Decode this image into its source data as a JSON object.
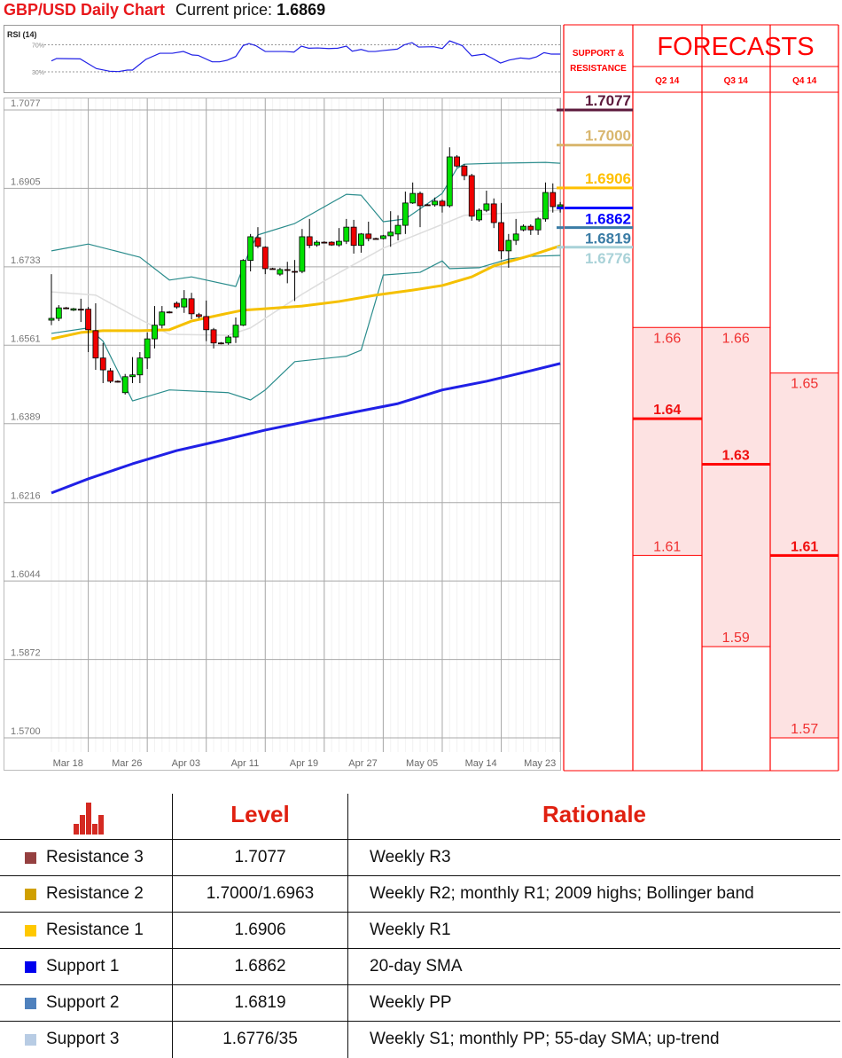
{
  "header": {
    "title": "GBP/USD Daily Chart",
    "price_label": "Current price:",
    "price_value": "1.6869"
  },
  "colors": {
    "bull": "#00e000",
    "bear": "#f00000",
    "bollinger": "#2a8c8c",
    "sma20": "#dddddd",
    "sma55": "#f5c000",
    "sma200": "#2020e6",
    "rsi": "#2020e6",
    "forecast_fill": "#fde2e2",
    "forecast_line": "#ff0000"
  },
  "chart_data": {
    "type": "candlestick",
    "y_ticks": [
      "1.7077",
      "1.6905",
      "1.6733",
      "1.6561",
      "1.6389",
      "1.6216",
      "1.6044",
      "1.5872",
      "1.5700"
    ],
    "ylim": [
      1.57,
      1.7077
    ],
    "x_ticks": [
      {
        "label": "Mar 18",
        "index": 2.25
      },
      {
        "label": "Mar 26",
        "index": 10.25
      },
      {
        "label": "Apr 03",
        "index": 18.25
      },
      {
        "label": "Apr 11",
        "index": 26.25
      },
      {
        "label": "Apr 19",
        "index": 34.25
      },
      {
        "label": "Apr 27",
        "index": 42.25
      },
      {
        "label": "May 05",
        "index": 50.25
      },
      {
        "label": "May 14",
        "index": 58.25
      },
      {
        "label": "May 23",
        "index": 66.25
      }
    ],
    "grid": true,
    "candles_ohlc": [
      [
        1.6616,
        1.6717,
        1.6605,
        1.662
      ],
      [
        1.662,
        1.6649,
        1.6614,
        1.6643
      ],
      [
        1.6643,
        1.6645,
        1.664,
        1.6642
      ],
      [
        1.6638,
        1.6643,
        1.6636,
        1.6641
      ],
      [
        1.664,
        1.6663,
        1.6612,
        1.6639
      ],
      [
        1.664,
        1.6645,
        1.6546,
        1.6595
      ],
      [
        1.6593,
        1.6653,
        1.6507,
        1.6533
      ],
      [
        1.6533,
        1.6566,
        1.6478,
        1.6507
      ],
      [
        1.6505,
        1.6511,
        1.6478,
        1.6482
      ],
      [
        1.6482,
        1.6484,
        1.6479,
        1.6481
      ],
      [
        1.6457,
        1.6498,
        1.6453,
        1.6492
      ],
      [
        1.6492,
        1.6535,
        1.6478,
        1.6496
      ],
      [
        1.6496,
        1.6546,
        1.6478,
        1.6533
      ],
      [
        1.6533,
        1.6589,
        1.6509,
        1.6575
      ],
      [
        1.6575,
        1.6647,
        1.6554,
        1.6605
      ],
      [
        1.6605,
        1.6647,
        1.6598,
        1.6634
      ],
      [
        1.6634,
        1.6636,
        1.6631,
        1.6633
      ],
      [
        1.6653,
        1.6657,
        1.6641,
        1.6645
      ],
      [
        1.6645,
        1.6682,
        1.6632,
        1.6663
      ],
      [
        1.6663,
        1.6676,
        1.6618,
        1.663
      ],
      [
        1.6628,
        1.6632,
        1.662,
        1.6624
      ],
      [
        1.6624,
        1.6659,
        1.657,
        1.6595
      ],
      [
        1.6595,
        1.6599,
        1.6554,
        1.6566
      ],
      [
        1.6566,
        1.6568,
        1.6563,
        1.6565
      ],
      [
        1.6566,
        1.6583,
        1.6562,
        1.6579
      ],
      [
        1.6579,
        1.6622,
        1.6566,
        1.6605
      ],
      [
        1.6605,
        1.675,
        1.6603,
        1.6747
      ],
      [
        1.6747,
        1.6805,
        1.6723,
        1.6799
      ],
      [
        1.6797,
        1.682,
        1.6774,
        1.6778
      ],
      [
        1.6776,
        1.6778,
        1.6717,
        1.6729
      ],
      [
        1.6729,
        1.6731,
        1.6727,
        1.6728
      ],
      [
        1.6717,
        1.6731,
        1.6713,
        1.6727
      ],
      [
        1.6727,
        1.6744,
        1.6697,
        1.6726
      ],
      [
        1.6723,
        1.6748,
        1.6658,
        1.6722
      ],
      [
        1.6723,
        1.6816,
        1.6719,
        1.6799
      ],
      [
        1.6799,
        1.6838,
        1.6774,
        1.678
      ],
      [
        1.6781,
        1.6791,
        1.6777,
        1.6787
      ],
      [
        1.6787,
        1.6789,
        1.6785,
        1.6786
      ],
      [
        1.6787,
        1.6789,
        1.6779,
        1.6781
      ],
      [
        1.6781,
        1.6818,
        1.6777,
        1.6789
      ],
      [
        1.6789,
        1.6838,
        1.6783,
        1.682
      ],
      [
        1.682,
        1.6836,
        1.6762,
        1.678
      ],
      [
        1.678,
        1.6807,
        1.6764,
        1.6805
      ],
      [
        1.6805,
        1.6832,
        1.6789,
        1.6795
      ],
      [
        1.6795,
        1.6797,
        1.6793,
        1.6794
      ],
      [
        1.6795,
        1.6803,
        1.6793,
        1.6801
      ],
      [
        1.6801,
        1.6855,
        1.6777,
        1.6809
      ],
      [
        1.6805,
        1.6846,
        1.6791,
        1.6824
      ],
      [
        1.6824,
        1.6898,
        1.6805,
        1.6873
      ],
      [
        1.6873,
        1.6918,
        1.6871,
        1.6894
      ],
      [
        1.6894,
        1.6898,
        1.682,
        1.6867
      ],
      [
        1.6869,
        1.6871,
        1.6867,
        1.6868
      ],
      [
        1.6869,
        1.6885,
        1.6865,
        1.6877
      ],
      [
        1.6877,
        1.6881,
        1.6852,
        1.6867
      ],
      [
        1.6867,
        1.6995,
        1.6863,
        1.6974
      ],
      [
        1.6974,
        1.6978,
        1.6951,
        1.6954
      ],
      [
        1.6954,
        1.6958,
        1.6923,
        1.6933
      ],
      [
        1.6933,
        1.6937,
        1.6834,
        1.6844
      ],
      [
        1.6836,
        1.6861,
        1.6832,
        1.6857
      ],
      [
        1.6857,
        1.69,
        1.6853,
        1.6871
      ],
      [
        1.6871,
        1.6883,
        1.6818,
        1.683
      ],
      [
        1.683,
        1.6873,
        1.675,
        1.6768
      ],
      [
        1.6768,
        1.6805,
        1.6731,
        1.6791
      ],
      [
        1.6791,
        1.6838,
        1.6781,
        1.6805
      ],
      [
        1.6814,
        1.6826,
        1.6811,
        1.6822
      ],
      [
        1.6822,
        1.6826,
        1.6803,
        1.6814
      ],
      [
        1.6814,
        1.6842,
        1.6803,
        1.6838
      ],
      [
        1.6838,
        1.6918,
        1.6832,
        1.6896
      ],
      [
        1.6896,
        1.6916,
        1.6852,
        1.6865
      ],
      [
        1.6865,
        1.6875,
        1.6852,
        1.6869
      ]
    ],
    "overlays": {
      "bollinger_upper": [
        [
          0,
          1.6768
        ],
        [
          5,
          1.6783
        ],
        [
          12,
          1.6754
        ],
        [
          16,
          1.6704
        ],
        [
          19,
          1.6711
        ],
        [
          25,
          1.669
        ],
        [
          27,
          1.6774
        ],
        [
          28,
          1.6803
        ],
        [
          33,
          1.6828
        ],
        [
          40,
          1.6892
        ],
        [
          42,
          1.689
        ],
        [
          45,
          1.6832
        ],
        [
          48,
          1.6838
        ],
        [
          53,
          1.6894
        ],
        [
          55,
          1.6949
        ],
        [
          56,
          1.6958
        ],
        [
          60,
          1.696
        ],
        [
          67,
          1.6962
        ],
        [
          69,
          1.696
        ]
      ],
      "bollinger_lower": [
        [
          0,
          1.6587
        ],
        [
          5,
          1.6599
        ],
        [
          7,
          1.657
        ],
        [
          11,
          1.6439
        ],
        [
          16,
          1.6463
        ],
        [
          24,
          1.6457
        ],
        [
          27,
          1.6441
        ],
        [
          29,
          1.6463
        ],
        [
          33,
          1.6525
        ],
        [
          40,
          1.6537
        ],
        [
          42,
          1.655
        ],
        [
          45,
          1.6715
        ],
        [
          50,
          1.6721
        ],
        [
          53,
          1.6746
        ],
        [
          54,
          1.6729
        ],
        [
          58,
          1.6731
        ],
        [
          62,
          1.675
        ],
        [
          65,
          1.6756
        ],
        [
          69,
          1.6758
        ]
      ],
      "sma20": [
        [
          0,
          1.6678
        ],
        [
          6,
          1.6671
        ],
        [
          12,
          1.6618
        ],
        [
          16,
          1.6585
        ],
        [
          24,
          1.6583
        ],
        [
          27,
          1.6599
        ],
        [
          34,
          1.6673
        ],
        [
          37,
          1.6702
        ],
        [
          45,
          1.6774
        ],
        [
          53,
          1.6826
        ],
        [
          56,
          1.6846
        ],
        [
          69,
          1.6857
        ]
      ],
      "sma55": [
        [
          0,
          1.6575
        ],
        [
          4,
          1.6589
        ],
        [
          7,
          1.6593
        ],
        [
          12,
          1.6593
        ],
        [
          16,
          1.6595
        ],
        [
          19,
          1.6614
        ],
        [
          23,
          1.6628
        ],
        [
          26,
          1.6638
        ],
        [
          29,
          1.6641
        ],
        [
          34,
          1.6647
        ],
        [
          39,
          1.6657
        ],
        [
          44,
          1.6671
        ],
        [
          49,
          1.6682
        ],
        [
          53,
          1.6692
        ],
        [
          57,
          1.6711
        ],
        [
          60,
          1.6735
        ],
        [
          65,
          1.6758
        ],
        [
          69,
          1.6779
        ]
      ],
      "sma200": [
        [
          0,
          1.6237
        ],
        [
          5,
          1.6268
        ],
        [
          11,
          1.6301
        ],
        [
          17,
          1.633
        ],
        [
          23,
          1.6352
        ],
        [
          29,
          1.6375
        ],
        [
          35,
          1.6395
        ],
        [
          41,
          1.6414
        ],
        [
          47,
          1.6433
        ],
        [
          53,
          1.6463
        ],
        [
          59,
          1.6482
        ],
        [
          65,
          1.6505
        ],
        [
          69,
          1.6521
        ]
      ]
    },
    "rsi": {
      "label": "RSI (14)",
      "levels": [
        {
          "value": 70,
          "label": "70%"
        },
        {
          "value": 30,
          "label": "30%"
        }
      ],
      "points": [
        [
          0,
          46.1
        ],
        [
          0.7,
          49.6
        ],
        [
          3.9,
          49.1
        ],
        [
          6.1,
          34.8
        ],
        [
          7.9,
          30.9
        ],
        [
          9.1,
          30.4
        ],
        [
          10.3,
          32.6
        ],
        [
          11,
          32.6
        ],
        [
          12.8,
          48.3
        ],
        [
          14.7,
          57.4
        ],
        [
          16.4,
          57.4
        ],
        [
          17.9,
          60.0
        ],
        [
          19.1,
          54.8
        ],
        [
          19.9,
          54.3
        ],
        [
          21.8,
          44.8
        ],
        [
          22.8,
          44.8
        ],
        [
          23.8,
          47.0
        ],
        [
          25,
          52.6
        ],
        [
          26,
          68.7
        ],
        [
          26.8,
          71.7
        ],
        [
          27.7,
          68.7
        ],
        [
          29,
          60.0
        ],
        [
          31.7,
          60.0
        ],
        [
          32.9,
          59.1
        ],
        [
          33.9,
          67.8
        ],
        [
          34.9,
          64.8
        ],
        [
          36.1,
          65.2
        ],
        [
          37.6,
          64.3
        ],
        [
          38.8,
          64.8
        ],
        [
          40,
          67.8
        ],
        [
          40.8,
          60.4
        ],
        [
          42,
          63.0
        ],
        [
          43,
          60.0
        ],
        [
          43.9,
          60.0
        ],
        [
          44.9,
          61.3
        ],
        [
          46.9,
          63.5
        ],
        [
          47.9,
          70.0
        ],
        [
          48.9,
          73.0
        ],
        [
          49.8,
          66.5
        ],
        [
          51.8,
          67.0
        ],
        [
          53,
          64.3
        ],
        [
          54,
          75.7
        ],
        [
          55.7,
          68.7
        ],
        [
          57,
          53.5
        ],
        [
          58.7,
          56.1
        ],
        [
          59.7,
          50.4
        ],
        [
          60.9,
          43.0
        ],
        [
          62.1,
          47.4
        ],
        [
          63.6,
          50.4
        ],
        [
          64.8,
          49.1
        ],
        [
          65.8,
          52.2
        ],
        [
          66.8,
          58.3
        ],
        [
          67.8,
          56.1
        ],
        [
          69,
          56.1
        ]
      ]
    }
  },
  "support_resistance": {
    "header_line1": "SUPPORT &",
    "header_line2": "RESISTANCE",
    "levels": [
      {
        "value": "1.7077",
        "price": 1.7077,
        "color": "#5c1a3c",
        "kind": "resistance"
      },
      {
        "value": "1.7000",
        "price": 1.7,
        "color": "#d9b76f",
        "kind": "resistance"
      },
      {
        "value": "1.6906",
        "price": 1.6906,
        "color": "#ffc000",
        "kind": "resistance"
      },
      {
        "value": "1.6862",
        "price": 1.6862,
        "color": "#0000ff",
        "kind": "support"
      },
      {
        "value": "1.6819",
        "price": 1.6819,
        "color": "#3a7ca5",
        "kind": "support"
      },
      {
        "value": "1.6776",
        "price": 1.6776,
        "color": "#a9d2d8",
        "kind": "support"
      }
    ]
  },
  "forecasts": {
    "title": "FORECASTS",
    "quarters": [
      {
        "label": "Q2 14",
        "high": "1.66",
        "mid": "1.64",
        "low": "1.61"
      },
      {
        "label": "Q3 14",
        "high": "1.66",
        "mid": "1.63",
        "low": "1.59"
      },
      {
        "label": "Q4 14",
        "high": "1.65",
        "mid": "1.61",
        "low": "1.57"
      }
    ]
  },
  "table": {
    "headers": {
      "icon": "bar-chart-icon",
      "level": "Level",
      "rationale": "Rationale"
    },
    "rows": [
      {
        "name": "Resistance 3",
        "color": "#954040",
        "level": "1.7077",
        "rationale": "Weekly R3"
      },
      {
        "name": "Resistance 2",
        "color": "#d0a000",
        "level": "1.7000/1.6963",
        "rationale": "Weekly R2; monthly R1; 2009 highs; Bollinger band"
      },
      {
        "name": "Resistance 1",
        "color": "#ffc800",
        "level": "1.6906",
        "rationale": "Weekly R1"
      },
      {
        "name": "Support 1",
        "color": "#0000ee",
        "level": "1.6862",
        "rationale": "20-day SMA"
      },
      {
        "name": "Support 2",
        "color": "#4f81bd",
        "level": "1.6819",
        "rationale": "Weekly PP"
      },
      {
        "name": "Support 3",
        "color": "#b8cce4",
        "level": "1.6776/35",
        "rationale": "Weekly S1; monthly PP; 55-day SMA; up-trend"
      }
    ]
  }
}
